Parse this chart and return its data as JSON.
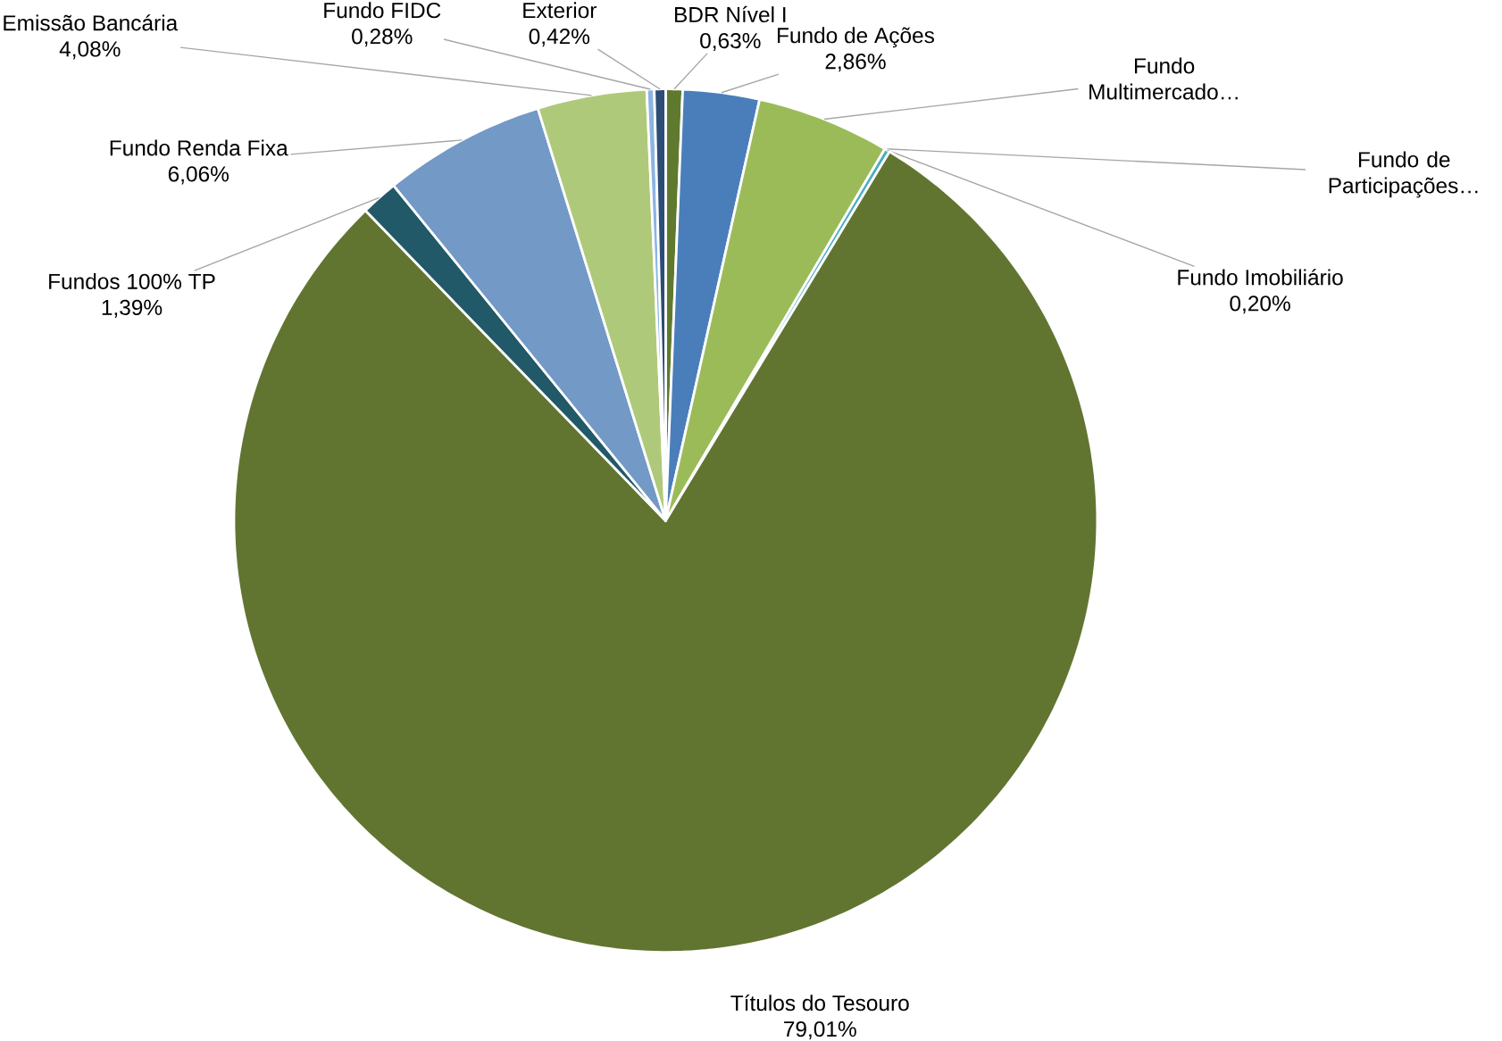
{
  "chart_data": {
    "type": "pie",
    "categories": [
      "BDR Nível I",
      "Fundo de Ações",
      "Fundo Multimercado…",
      "Fundo de Participações…",
      "Fundo Imobiliário",
      "Títulos do Tesouro",
      "Fundos 100% TP",
      "Fundo Renda Fixa",
      "Emissão Bancária",
      "Fundo FIDC",
      "Exterior"
    ],
    "values": [
      0.63,
      2.86,
      4.98,
      null,
      0.2,
      79.01,
      1.39,
      6.06,
      4.08,
      0.28,
      0.42
    ],
    "value_labels": [
      "0,63%",
      "2,86%",
      null,
      null,
      "0,20%",
      "79,01%",
      "1,39%",
      "6,06%",
      "4,08%",
      "0,28%",
      "0,42%"
    ],
    "colors": [
      "#5f7a2e",
      "#4a7ebb",
      "#9bbb59",
      "#4f81bd",
      "#4bacc6",
      "#617531",
      "#215968",
      "#7399c6",
      "#afc97a",
      "#8cb4e2",
      "#2c4d75"
    ]
  }
}
